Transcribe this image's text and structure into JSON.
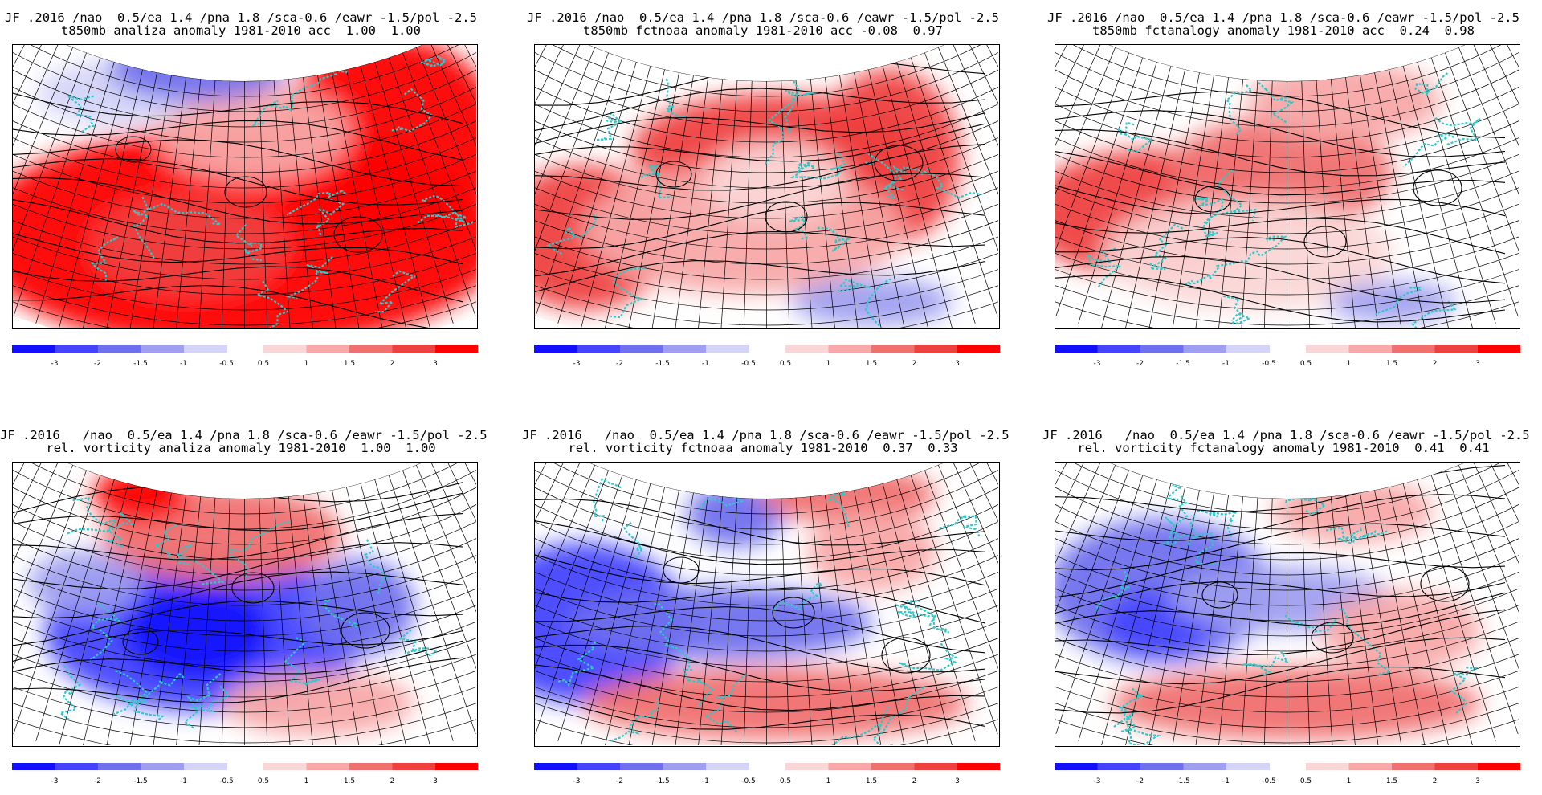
{
  "panels": [
    {
      "title_line1": "JF .2016 /nao  0.5/ea 1.4 /pna 1.8 /sca-0.6 /eawr -1.5/pol -2.5",
      "title_line2": "t850mb analiza anomaly 1981-2010 acc  1.00  1.00",
      "field": "t850mb-analiza"
    },
    {
      "title_line1": "JF .2016 /nao  0.5/ea 1.4 /pna 1.8 /sca-0.6 /eawr -1.5/pol -2.5",
      "title_line2": "t850mb fctnoaa anomaly 1981-2010 acc -0.08  0.97",
      "field": "t850mb-fctnoaa"
    },
    {
      "title_line1": "JF .2016 /nao  0.5/ea 1.4 /pna 1.8 /sca-0.6 /eawr -1.5/pol -2.5",
      "title_line2": "t850mb fctanalogy anomaly 1981-2010 acc  0.24  0.98",
      "field": "t850mb-fctanalogy"
    },
    {
      "title_line1": "JF .2016   /nao  0.5/ea 1.4 /pna 1.8 /sca-0.6 /eawr -1.5/pol -2.5",
      "title_line2": "rel. vorticity analiza anomaly 1981-2010  1.00  1.00",
      "field": "vorticity-analiza"
    },
    {
      "title_line1": "JF .2016   /nao  0.5/ea 1.4 /pna 1.8 /sca-0.6 /eawr -1.5/pol -2.5",
      "title_line2": "rel. vorticity fctnoaa anomaly 1981-2010  0.37  0.33",
      "field": "vorticity-fctnoaa"
    },
    {
      "title_line1": "JF .2016   /nao  0.5/ea 1.4 /pna 1.8 /sca-0.6 /eawr -1.5/pol -2.5",
      "title_line2": "rel. vorticity fctanalogy anomaly 1981-2010  0.41  0.41",
      "field": "vorticity-fctanalogy"
    }
  ],
  "colorbar": {
    "negative_labels": [
      "-3",
      "-2",
      "-1.5",
      "-1",
      "-0.5"
    ],
    "positive_labels": [
      "0.5",
      "1",
      "1.5",
      "2",
      "3"
    ],
    "negative_colors": [
      "#1010ff",
      "#4444ff",
      "#7070ee",
      "#9f9ff0",
      "#d4d4f8"
    ],
    "positive_colors": [
      "#fbd6d6",
      "#f8a8a8",
      "#f07070",
      "#ef4040",
      "#ff0000"
    ]
  },
  "colors": {
    "coastline": "#2ec8c8",
    "contour": "#000000",
    "strong_positive": "#ff0000",
    "strong_negative": "#1010ff"
  }
}
